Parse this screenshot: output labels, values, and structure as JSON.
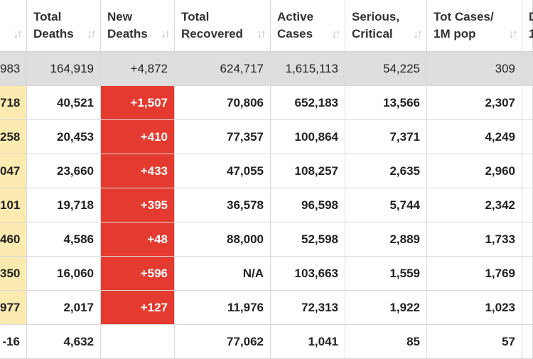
{
  "columns": [
    {
      "label": ""
    },
    {
      "label": "Total\nDeaths"
    },
    {
      "label": "New\nDeaths"
    },
    {
      "label": "Total\nRecovered"
    },
    {
      "label": "Active\nCases"
    },
    {
      "label": "Serious,\nCritical"
    },
    {
      "label": "Tot Cases/\n1M pop"
    },
    {
      "label": "D\n1"
    }
  ],
  "sort_icon": "↓↑",
  "total_row": [
    "983",
    "164,919",
    "+4,872",
    "624,717",
    "1,615,113",
    "54,225",
    "309"
  ],
  "rows": [
    {
      "cells": [
        "718",
        "40,521",
        "+1,507",
        "70,806",
        "652,183",
        "13,566",
        "2,307"
      ]
    },
    {
      "cells": [
        "258",
        "20,453",
        "+410",
        "77,357",
        "100,864",
        "7,371",
        "4,249"
      ]
    },
    {
      "cells": [
        "047",
        "23,660",
        "+433",
        "47,055",
        "108,257",
        "2,635",
        "2,960"
      ]
    },
    {
      "cells": [
        "101",
        "19,718",
        "+395",
        "36,578",
        "96,598",
        "5,744",
        "2,342"
      ]
    },
    {
      "cells": [
        "460",
        "4,586",
        "+48",
        "88,000",
        "52,598",
        "2,889",
        "1,733"
      ]
    },
    {
      "cells": [
        "350",
        "16,060",
        "+596",
        "N/A",
        "103,663",
        "1,559",
        "1,769"
      ]
    },
    {
      "cells": [
        "977",
        "2,017",
        "+127",
        "11,976",
        "72,313",
        "1,922",
        "1,023"
      ]
    },
    {
      "cells": [
        "-16",
        "4,632",
        "",
        "77,062",
        "1,041",
        "85",
        "57"
      ]
    }
  ],
  "colors": {
    "new_deaths_highlight": "#e53a2f",
    "new_cases_highlight": "#fcebb0",
    "total_row_bg": "#dedede"
  }
}
